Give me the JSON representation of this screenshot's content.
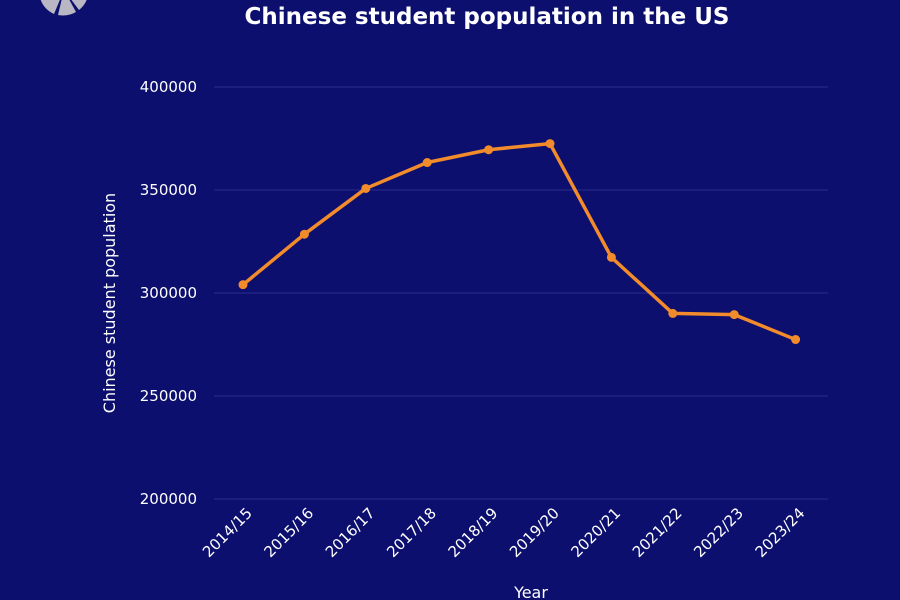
{
  "chart_data": {
    "type": "line",
    "title": "Chinese student population in the US",
    "xlabel": "Year",
    "ylabel": "Chinese student population",
    "categories": [
      "2014/15",
      "2015/16",
      "2016/17",
      "2017/18",
      "2018/19",
      "2019/20",
      "2020/21",
      "2021/22",
      "2022/23",
      "2023/24"
    ],
    "series": [
      {
        "values": [
          304040,
          328547,
          350755,
          363341,
          369548,
          372532,
          317299,
          290086,
          289526,
          277398
        ]
      }
    ],
    "yticks": [
      "200000",
      "250000",
      "300000",
      "350000",
      "400000"
    ],
    "ylim": [
      200000,
      400000
    ],
    "grid": true,
    "legend": "none",
    "colors": {
      "background": "#0c0f6e",
      "line": "#f28b2b",
      "grid": "#2a2e8a",
      "text": "#ffffff",
      "logo_gray": "#b9b7c4",
      "logo_orange": "#f28b2b"
    }
  },
  "logo": {
    "icon": "segmented-circle-logo-icon"
  }
}
